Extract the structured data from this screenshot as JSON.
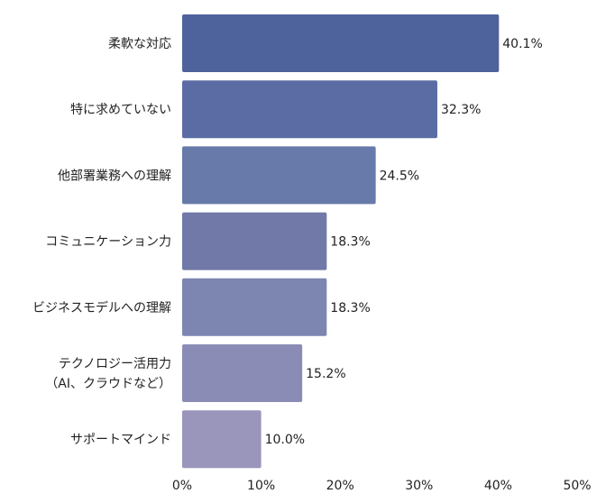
{
  "chart_data": {
    "type": "bar",
    "orientation": "horizontal",
    "categories": [
      [
        "柔軟な対応"
      ],
      [
        "特に求めていない"
      ],
      [
        "他部署業務への理解"
      ],
      [
        "コミュニケーション力"
      ],
      [
        "ビジネスモデルへの理解"
      ],
      [
        "テクノロジー活用力",
        "（AI、クラウドなど）"
      ],
      [
        "サポートマインド"
      ]
    ],
    "values": [
      40.1,
      32.3,
      24.5,
      18.3,
      18.3,
      15.2,
      10.0
    ],
    "value_labels": [
      "40.1%",
      "32.3%",
      "24.5%",
      "18.3%",
      "18.3%",
      "15.2%",
      "10.0%"
    ],
    "colors": [
      "#4e639c",
      "#5a6ca3",
      "#677aaa",
      "#7079a8",
      "#7d85b1",
      "#8b8cb6",
      "#9995bb"
    ],
    "xlim": [
      0,
      50
    ],
    "xticks": [
      0,
      10,
      20,
      30,
      40,
      50
    ],
    "xtick_labels": [
      "0%",
      "10%",
      "20%",
      "30%",
      "40%",
      "50%"
    ],
    "title": "",
    "xlabel": "",
    "ylabel": ""
  }
}
